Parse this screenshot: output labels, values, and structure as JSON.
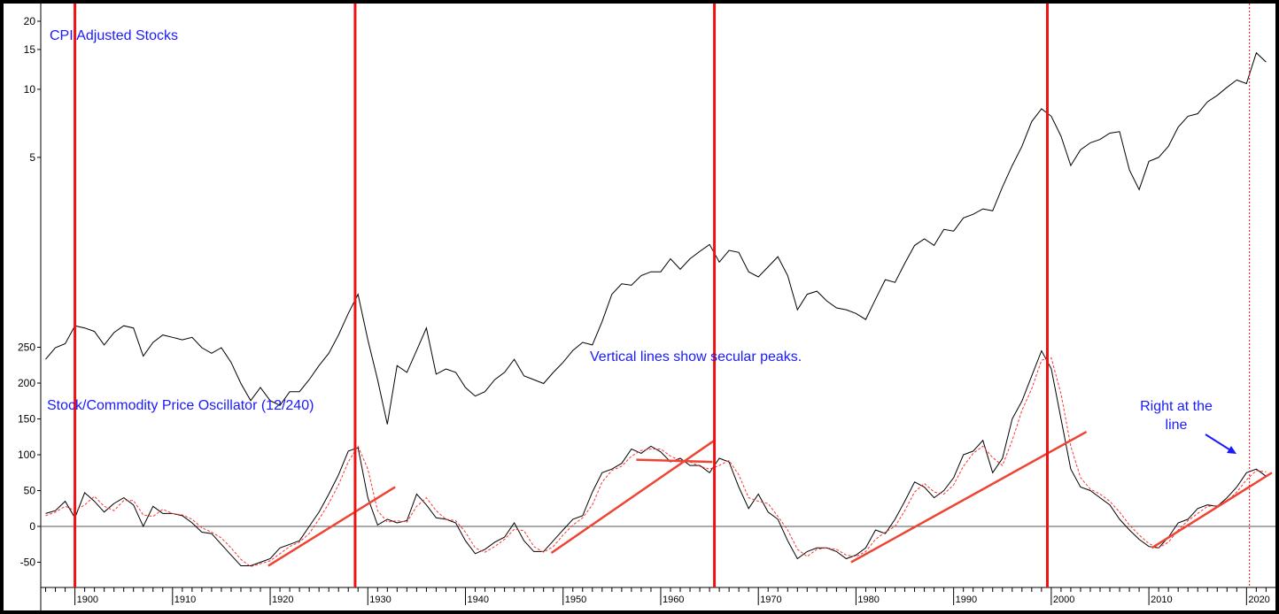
{
  "chart_data": [
    {
      "type": "line",
      "title": "CPI Adjusted Stocks",
      "y_scale": "log",
      "y_ticks": [
        5,
        10,
        15,
        20
      ],
      "series": [
        {
          "color": "#000000",
          "x": [
            1897,
            1898,
            1899,
            1900,
            1901,
            1902,
            1903,
            1904,
            1905,
            1906,
            1907,
            1908,
            1909,
            1910,
            1911,
            1912,
            1913,
            1914,
            1915,
            1916,
            1917,
            1918,
            1919,
            1920,
            1921,
            1922,
            1923,
            1924,
            1925,
            1926,
            1927,
            1928,
            1929,
            1930,
            1931,
            1932,
            1933,
            1934,
            1935,
            1936,
            1937,
            1938,
            1939,
            1940,
            1941,
            1942,
            1943,
            1944,
            1945,
            1946,
            1947,
            1948,
            1949,
            1950,
            1951,
            1952,
            1953,
            1954,
            1955,
            1956,
            1957,
            1958,
            1959,
            1960,
            1961,
            1962,
            1963,
            1964,
            1965,
            1966,
            1967,
            1968,
            1969,
            1970,
            1971,
            1972,
            1973,
            1974,
            1975,
            1976,
            1977,
            1978,
            1979,
            1980,
            1981,
            1982,
            1983,
            1984,
            1985,
            1986,
            1987,
            1988,
            1989,
            1990,
            1991,
            1992,
            1993,
            1994,
            1995,
            1996,
            1997,
            1998,
            1999,
            2000,
            2001,
            2002,
            2003,
            2004,
            2005,
            2006,
            2007,
            2008,
            2009,
            2010,
            2011,
            2012,
            2013,
            2014,
            2015,
            2016,
            2017,
            2018,
            2019,
            2020,
            2021,
            2022
          ],
          "y": [
            0.64,
            0.72,
            0.75,
            0.9,
            0.88,
            0.85,
            0.74,
            0.84,
            0.9,
            0.88,
            0.66,
            0.76,
            0.82,
            0.8,
            0.78,
            0.8,
            0.72,
            0.68,
            0.72,
            0.62,
            0.5,
            0.42,
            0.48,
            0.42,
            0.4,
            0.46,
            0.46,
            0.52,
            0.6,
            0.68,
            0.82,
            1.02,
            1.24,
            0.78,
            0.52,
            0.33,
            0.6,
            0.56,
            0.7,
            0.88,
            0.55,
            0.58,
            0.56,
            0.48,
            0.44,
            0.46,
            0.52,
            0.56,
            0.64,
            0.54,
            0.52,
            0.5,
            0.56,
            0.62,
            0.7,
            0.76,
            0.74,
            0.94,
            1.24,
            1.38,
            1.36,
            1.5,
            1.56,
            1.56,
            1.78,
            1.6,
            1.78,
            1.92,
            2.06,
            1.72,
            1.94,
            1.9,
            1.56,
            1.48,
            1.64,
            1.82,
            1.5,
            1.06,
            1.24,
            1.28,
            1.16,
            1.08,
            1.06,
            1.02,
            0.96,
            1.18,
            1.44,
            1.4,
            1.7,
            2.04,
            2.18,
            2.04,
            2.4,
            2.36,
            2.7,
            2.8,
            2.96,
            2.9,
            3.7,
            4.6,
            5.6,
            7.2,
            8.2,
            7.6,
            6.2,
            4.6,
            5.4,
            5.8,
            6.0,
            6.4,
            6.5,
            4.4,
            3.6,
            4.8,
            5.0,
            5.6,
            6.8,
            7.6,
            7.8,
            8.8,
            9.4,
            10.2,
            11.0,
            10.6,
            14.5,
            13.2
          ]
        }
      ]
    },
    {
      "type": "line",
      "title": "Stock/Commodity  Price Oscillator (12/240)",
      "xlim": [
        1896.5,
        2022.6
      ],
      "x_ticks": [
        1900,
        1910,
        1920,
        1930,
        1940,
        1950,
        1960,
        1970,
        1980,
        1990,
        2000,
        2010,
        2020
      ],
      "ylim": [
        -85,
        262
      ],
      "y_ticks": [
        -50,
        0,
        50,
        100,
        150,
        200,
        250
      ],
      "series": [
        {
          "color": "#000000",
          "x": [
            1897,
            1898,
            1899,
            1900,
            1901,
            1902,
            1903,
            1904,
            1905,
            1906,
            1907,
            1908,
            1909,
            1910,
            1911,
            1912,
            1913,
            1914,
            1915,
            1916,
            1917,
            1918,
            1919,
            1920,
            1921,
            1922,
            1923,
            1924,
            1925,
            1926,
            1927,
            1928,
            1929,
            1930,
            1931,
            1932,
            1933,
            1934,
            1935,
            1936,
            1937,
            1938,
            1939,
            1940,
            1941,
            1942,
            1943,
            1944,
            1945,
            1946,
            1947,
            1948,
            1949,
            1950,
            1951,
            1952,
            1953,
            1954,
            1955,
            1956,
            1957,
            1958,
            1959,
            1960,
            1961,
            1962,
            1963,
            1964,
            1965,
            1966,
            1967,
            1968,
            1969,
            1970,
            1971,
            1972,
            1973,
            1974,
            1975,
            1976,
            1977,
            1978,
            1979,
            1980,
            1981,
            1982,
            1983,
            1984,
            1985,
            1986,
            1987,
            1988,
            1989,
            1990,
            1991,
            1992,
            1993,
            1994,
            1995,
            1996,
            1997,
            1998,
            1999,
            2000,
            2001,
            2002,
            2003,
            2004,
            2005,
            2006,
            2007,
            2008,
            2009,
            2010,
            2011,
            2012,
            2013,
            2014,
            2015,
            2016,
            2017,
            2018,
            2019,
            2020,
            2021,
            2022
          ],
          "y": [
            18,
            22,
            35,
            12,
            47,
            35,
            20,
            32,
            40,
            30,
            0,
            28,
            18,
            18,
            15,
            5,
            -8,
            -10,
            -25,
            -40,
            -55,
            -55,
            -50,
            -45,
            -30,
            -25,
            -20,
            0,
            20,
            45,
            72,
            105,
            110,
            40,
            2,
            10,
            5,
            8,
            45,
            30,
            12,
            10,
            5,
            -20,
            -38,
            -32,
            -22,
            -15,
            5,
            -20,
            -35,
            -35,
            -20,
            -5,
            10,
            15,
            48,
            75,
            80,
            88,
            108,
            102,
            112,
            104,
            90,
            95,
            85,
            85,
            75,
            95,
            90,
            55,
            25,
            45,
            20,
            10,
            -20,
            -45,
            -35,
            -30,
            -30,
            -35,
            -45,
            -40,
            -30,
            -5,
            -10,
            10,
            35,
            62,
            55,
            40,
            50,
            68,
            100,
            105,
            120,
            75,
            95,
            150,
            175,
            210,
            245,
            220,
            150,
            80,
            55,
            50,
            40,
            30,
            10,
            -5,
            -18,
            -28,
            -30,
            -15,
            5,
            10,
            25,
            30,
            28,
            40,
            55,
            75,
            80,
            70
          ]
        },
        {
          "color": "#ff3333",
          "x": [
            1897,
            1898,
            1899,
            1900,
            1901,
            1902,
            1903,
            1904,
            1905,
            1906,
            1907,
            1908,
            1909,
            1910,
            1911,
            1912,
            1913,
            1914,
            1915,
            1916,
            1917,
            1918,
            1919,
            1920,
            1921,
            1922,
            1923,
            1924,
            1925,
            1926,
            1927,
            1928,
            1929,
            1930,
            1931,
            1932,
            1933,
            1934,
            1935,
            1936,
            1937,
            1938,
            1939,
            1940,
            1941,
            1942,
            1943,
            1944,
            1945,
            1946,
            1947,
            1948,
            1949,
            1950,
            1951,
            1952,
            1953,
            1954,
            1955,
            1956,
            1957,
            1958,
            1959,
            1960,
            1961,
            1962,
            1963,
            1964,
            1965,
            1966,
            1967,
            1968,
            1969,
            1970,
            1971,
            1972,
            1973,
            1974,
            1975,
            1976,
            1977,
            1978,
            1979,
            1980,
            1981,
            1982,
            1983,
            1984,
            1985,
            1986,
            1987,
            1988,
            1989,
            1990,
            1991,
            1992,
            1993,
            1994,
            1995,
            1996,
            1997,
            1998,
            1999,
            2000,
            2001,
            2002,
            2003,
            2004,
            2005,
            2006,
            2007,
            2008,
            2009,
            2010,
            2011,
            2012,
            2013,
            2014,
            2015,
            2016,
            2017,
            2018,
            2019,
            2020,
            2021,
            2022
          ],
          "y": [
            15,
            20,
            28,
            22,
            30,
            42,
            28,
            22,
            36,
            36,
            16,
            14,
            24,
            18,
            16,
            10,
            -2,
            -8,
            -16,
            -30,
            -46,
            -56,
            -52,
            -48,
            -38,
            -28,
            -22,
            -10,
            10,
            32,
            58,
            90,
            112,
            80,
            22,
            6,
            8,
            6,
            28,
            40,
            22,
            10,
            8,
            -8,
            -30,
            -36,
            -28,
            -18,
            -4,
            -6,
            -28,
            -36,
            -28,
            -12,
            2,
            12,
            30,
            62,
            78,
            84,
            98,
            106,
            108,
            108,
            98,
            92,
            90,
            84,
            80,
            85,
            92,
            72,
            40,
            35,
            32,
            14,
            -5,
            -32,
            -42,
            -32,
            -30,
            -32,
            -40,
            -42,
            -35,
            -18,
            -8,
            0,
            22,
            48,
            60,
            48,
            45,
            58,
            84,
            102,
            112,
            96,
            85,
            120,
            162,
            192,
            232,
            235,
            185,
            112,
            68,
            52,
            45,
            35,
            20,
            2,
            -12,
            -24,
            -30,
            -22,
            -5,
            8,
            18,
            28,
            29,
            35,
            48,
            65,
            78,
            76
          ]
        }
      ]
    }
  ],
  "annotations": {
    "vertical_lines_note": "Vertical lines show secular peaks.",
    "right_at_line": [
      "Right at the",
      "line"
    ]
  },
  "secular_peak_lines_x": [
    1900,
    1928.7,
    1965.5,
    1999.6
  ],
  "dashed_line_x": 2020.3,
  "trendlines": [
    {
      "x": [
        1919.8,
        1932.8
      ],
      "y": [
        -55,
        55
      ]
    },
    {
      "x": [
        1948.8,
        1965.5
      ],
      "y": [
        -37,
        120
      ]
    },
    {
      "x": [
        1957.5,
        1965.3
      ],
      "y": [
        93,
        90
      ]
    },
    {
      "x": [
        1979.5,
        2003.6
      ],
      "y": [
        -50,
        132
      ]
    },
    {
      "x": [
        2010.3,
        2022.6
      ],
      "y": [
        -30,
        75
      ]
    }
  ],
  "colors": {
    "peak_line": "#ee1111",
    "trendline": "#ee4433",
    "annotation_text": "#1a1aff",
    "frame": "#000000"
  }
}
